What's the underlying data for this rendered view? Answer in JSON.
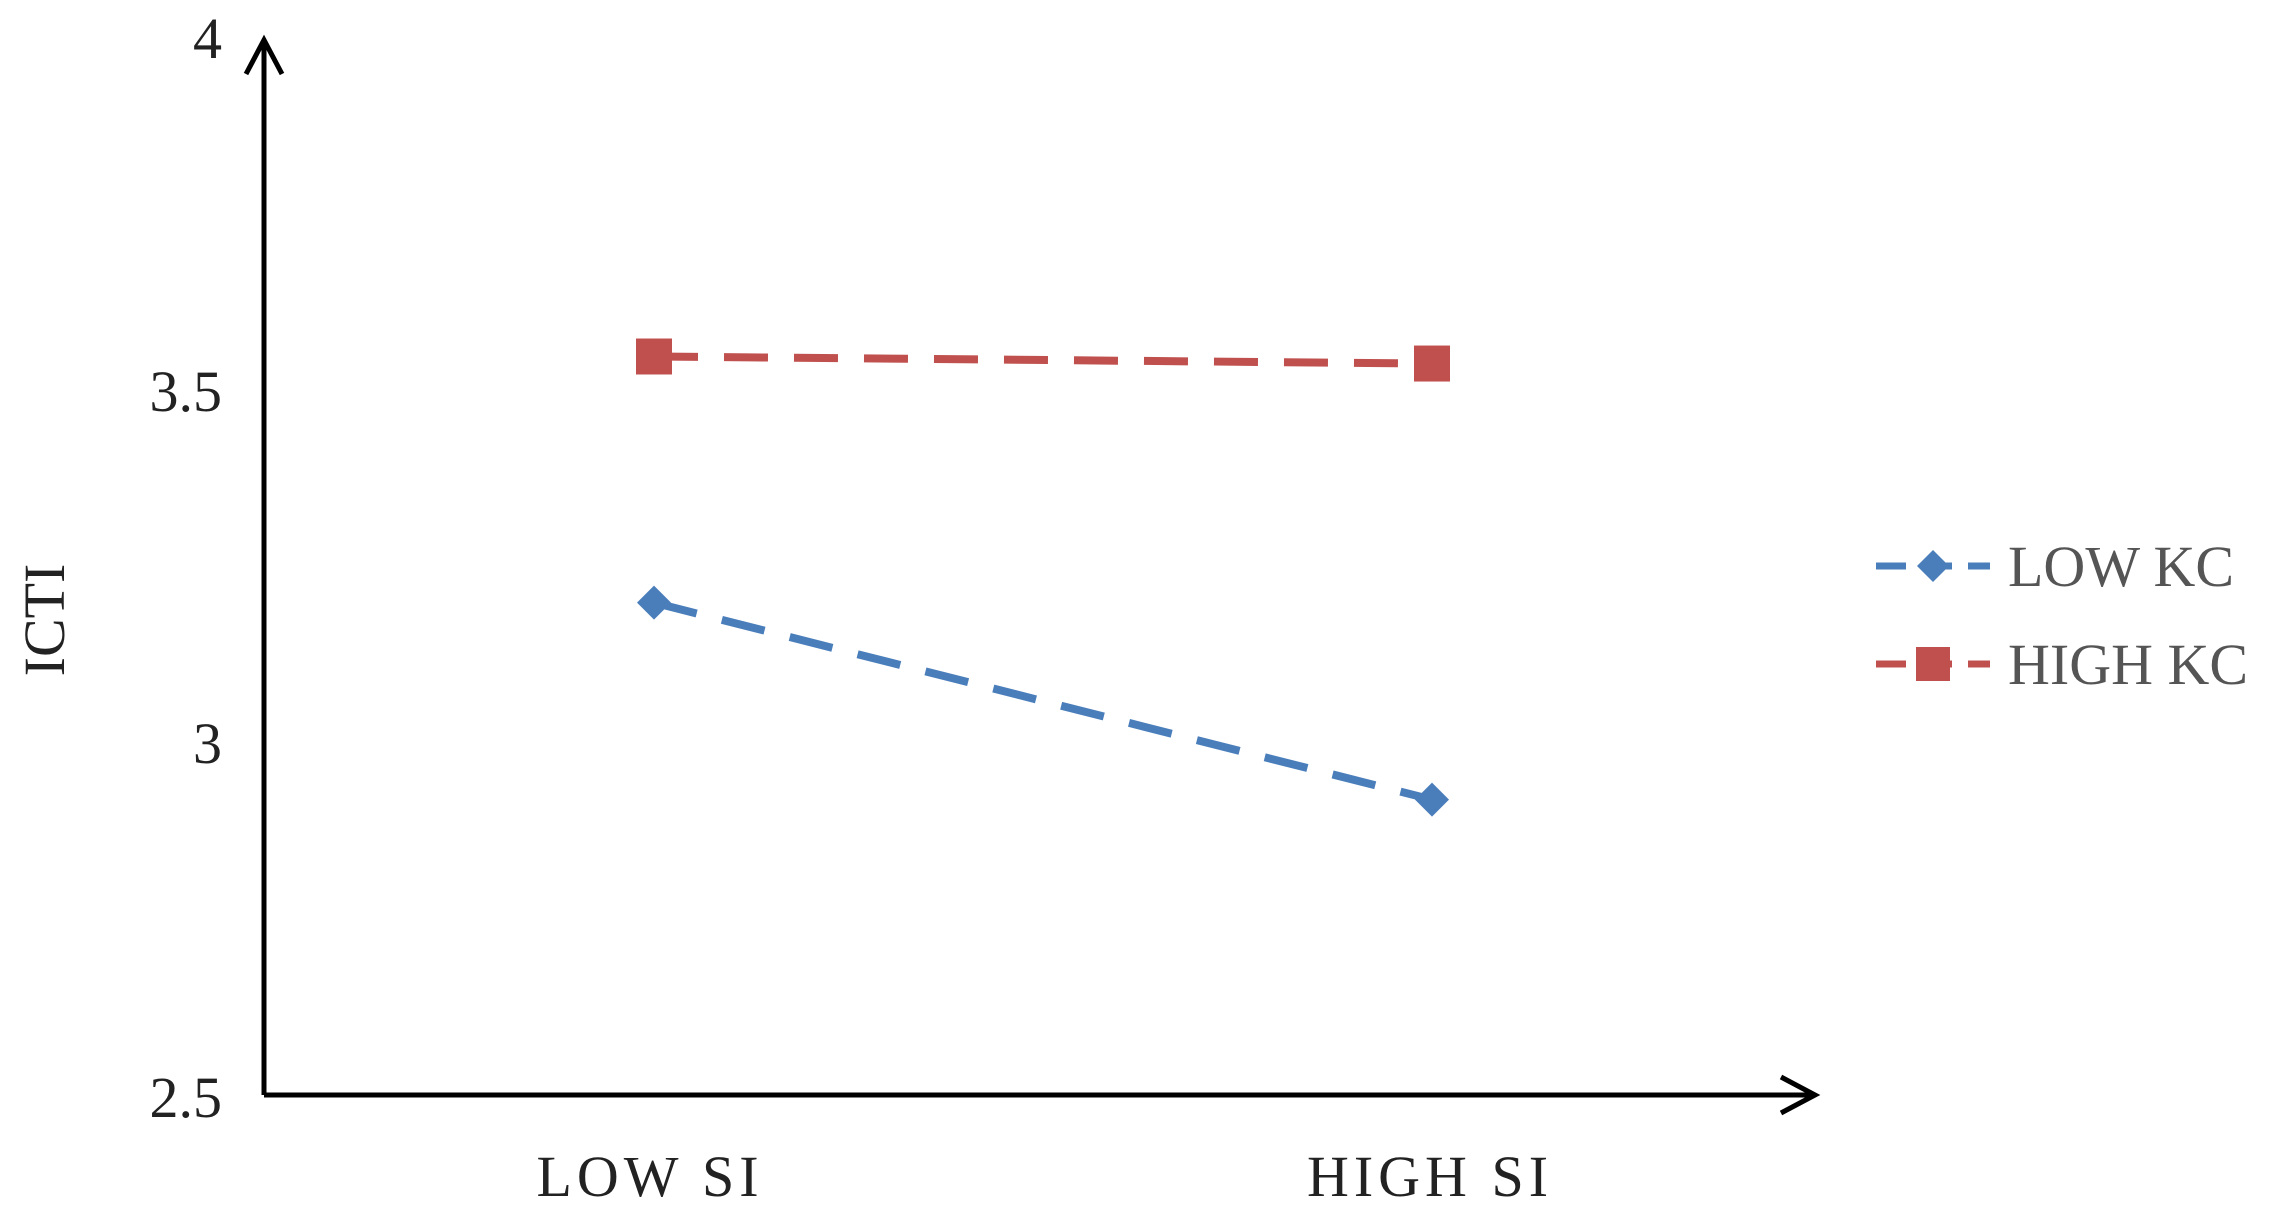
{
  "chart_data": {
    "type": "line",
    "title": "",
    "xlabel": "",
    "ylabel": "ICTI",
    "categories": [
      "LOW SI",
      "HIGH SI"
    ],
    "yticks": [
      "2.5",
      "3",
      "3.5",
      "4"
    ],
    "ylim": [
      2.5,
      4
    ],
    "grid": false,
    "legend_position": "right",
    "series": [
      {
        "name": "LOW KC",
        "values": [
          3.2,
          2.92
        ],
        "marker": "diamond",
        "color": "#4a7ebb",
        "dashed": true
      },
      {
        "name": "HIGH KC",
        "values": [
          3.55,
          3.54
        ],
        "marker": "square",
        "color": "#c0504d",
        "dashed": true
      }
    ]
  }
}
